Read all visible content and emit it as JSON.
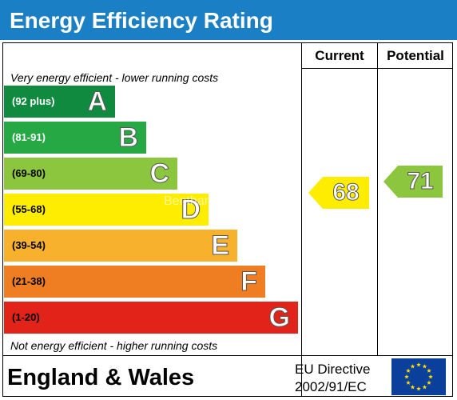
{
  "title": "Energy Efficiency Rating",
  "columns": {
    "current": "Current",
    "potential": "Potential"
  },
  "top_note": "Very energy efficient - lower running costs",
  "bottom_note": "Not energy efficient - higher running costs",
  "bands": [
    {
      "range": "(92 plus)",
      "letter": "A",
      "color": "#0f8a3e",
      "range_color": "#ffffff"
    },
    {
      "range": "(81-91)",
      "letter": "B",
      "color": "#26a844",
      "range_color": "#ffffff"
    },
    {
      "range": "(69-80)",
      "letter": "C",
      "color": "#8cc63f",
      "range_color": "#000000"
    },
    {
      "range": "(55-68)",
      "letter": "D",
      "color": "#ffed00",
      "range_color": "#000000"
    },
    {
      "range": "(39-54)",
      "letter": "E",
      "color": "#f7b12c",
      "range_color": "#000000"
    },
    {
      "range": "(21-38)",
      "letter": "F",
      "color": "#ef7d22",
      "range_color": "#000000"
    },
    {
      "range": "(1-20)",
      "letter": "G",
      "color": "#e2231a",
      "range_color": "#000000"
    }
  ],
  "current_rating": {
    "value": "68",
    "band": "D",
    "color": "#ffed00"
  },
  "potential_rating": {
    "value": "71",
    "band": "C",
    "color": "#8cc63f"
  },
  "region": "England & Wales",
  "directive": {
    "line1": "EU Directive",
    "line2": "2002/91/EC"
  },
  "watermark": "Bentham",
  "colors": {
    "title_bar": "#1a7fc4",
    "eu_flag": "#0b3f9c",
    "eu_stars": "#ffdd00"
  }
}
